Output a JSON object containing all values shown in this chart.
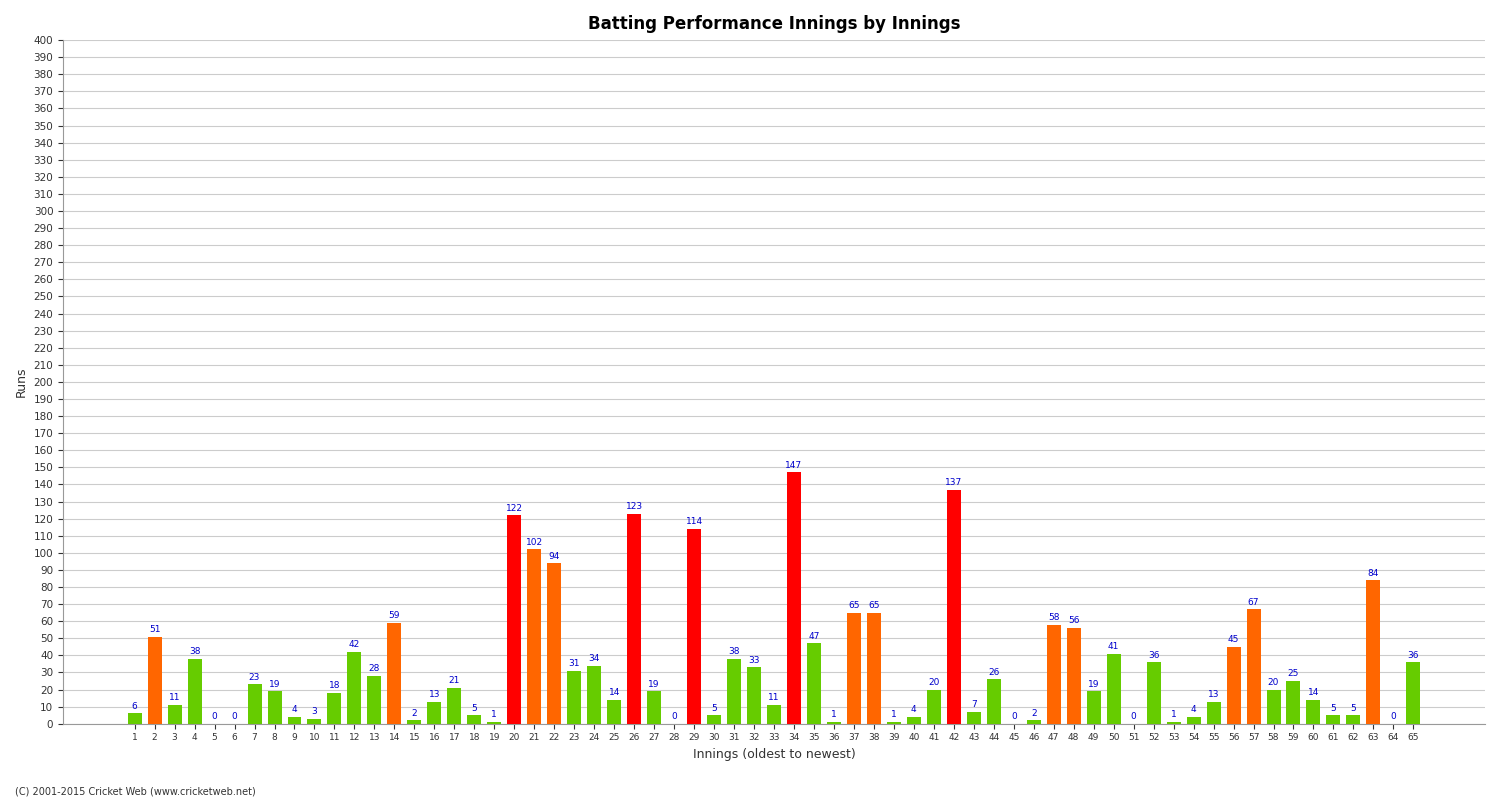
{
  "innings": [
    1,
    2,
    3,
    4,
    5,
    6,
    7,
    8,
    9,
    10,
    11,
    12,
    13,
    14,
    15,
    16,
    17,
    18,
    19,
    20,
    21,
    22,
    23,
    24,
    25,
    26,
    27,
    28,
    29,
    30,
    31,
    32,
    33,
    34,
    35,
    36,
    37,
    38,
    39,
    40,
    41,
    42,
    43,
    44,
    45,
    46,
    47,
    48,
    49,
    50,
    51,
    52,
    53,
    54,
    55,
    56,
    57,
    58,
    59,
    60,
    61,
    62,
    63,
    64,
    65
  ],
  "values": [
    6,
    51,
    11,
    38,
    0,
    0,
    23,
    19,
    4,
    3,
    18,
    42,
    28,
    59,
    2,
    13,
    21,
    5,
    1,
    122,
    102,
    94,
    31,
    34,
    14,
    123,
    19,
    0,
    114,
    5,
    38,
    33,
    11,
    147,
    47,
    1,
    65,
    65,
    1,
    4,
    20,
    137,
    7,
    26,
    0,
    2,
    58,
    56,
    19,
    41,
    0,
    36,
    1,
    4,
    13,
    45,
    67,
    20,
    25,
    14,
    5,
    5,
    84,
    0,
    36
  ],
  "colors": [
    "#66cc00",
    "#ff6600",
    "#66cc00",
    "#66cc00",
    "#66cc00",
    "#66cc00",
    "#66cc00",
    "#66cc00",
    "#66cc00",
    "#66cc00",
    "#66cc00",
    "#66cc00",
    "#66cc00",
    "#ff6600",
    "#66cc00",
    "#66cc00",
    "#66cc00",
    "#66cc00",
    "#66cc00",
    "#ff0000",
    "#ff6600",
    "#ff6600",
    "#66cc00",
    "#66cc00",
    "#66cc00",
    "#ff0000",
    "#66cc00",
    "#66cc00",
    "#ff0000",
    "#66cc00",
    "#66cc00",
    "#66cc00",
    "#66cc00",
    "#ff0000",
    "#66cc00",
    "#66cc00",
    "#ff6600",
    "#ff6600",
    "#66cc00",
    "#66cc00",
    "#66cc00",
    "#ff0000",
    "#66cc00",
    "#66cc00",
    "#66cc00",
    "#66cc00",
    "#ff6600",
    "#ff6600",
    "#66cc00",
    "#66cc00",
    "#66cc00",
    "#66cc00",
    "#66cc00",
    "#66cc00",
    "#66cc00",
    "#ff6600",
    "#ff6600",
    "#66cc00",
    "#66cc00",
    "#66cc00",
    "#66cc00",
    "#66cc00",
    "#ff6600",
    "#66cc00",
    "#66cc00"
  ],
  "xlabel": "Innings (oldest to newest)",
  "ylabel": "Runs",
  "title": "Batting Performance Innings by Innings",
  "ylim": [
    0,
    400
  ],
  "yticks": [
    0,
    10,
    20,
    30,
    40,
    50,
    60,
    70,
    80,
    90,
    100,
    110,
    120,
    130,
    140,
    150,
    160,
    170,
    180,
    190,
    200,
    210,
    220,
    230,
    240,
    250,
    260,
    270,
    280,
    290,
    300,
    310,
    320,
    330,
    340,
    350,
    360,
    370,
    380,
    390,
    400
  ],
  "bg_color": "#ffffff",
  "grid_color": "#cccccc",
  "footer": "(C) 2001-2015 Cricket Web (www.cricketweb.net)",
  "label_color": "#0000cc",
  "label_fontsize": 6.5
}
